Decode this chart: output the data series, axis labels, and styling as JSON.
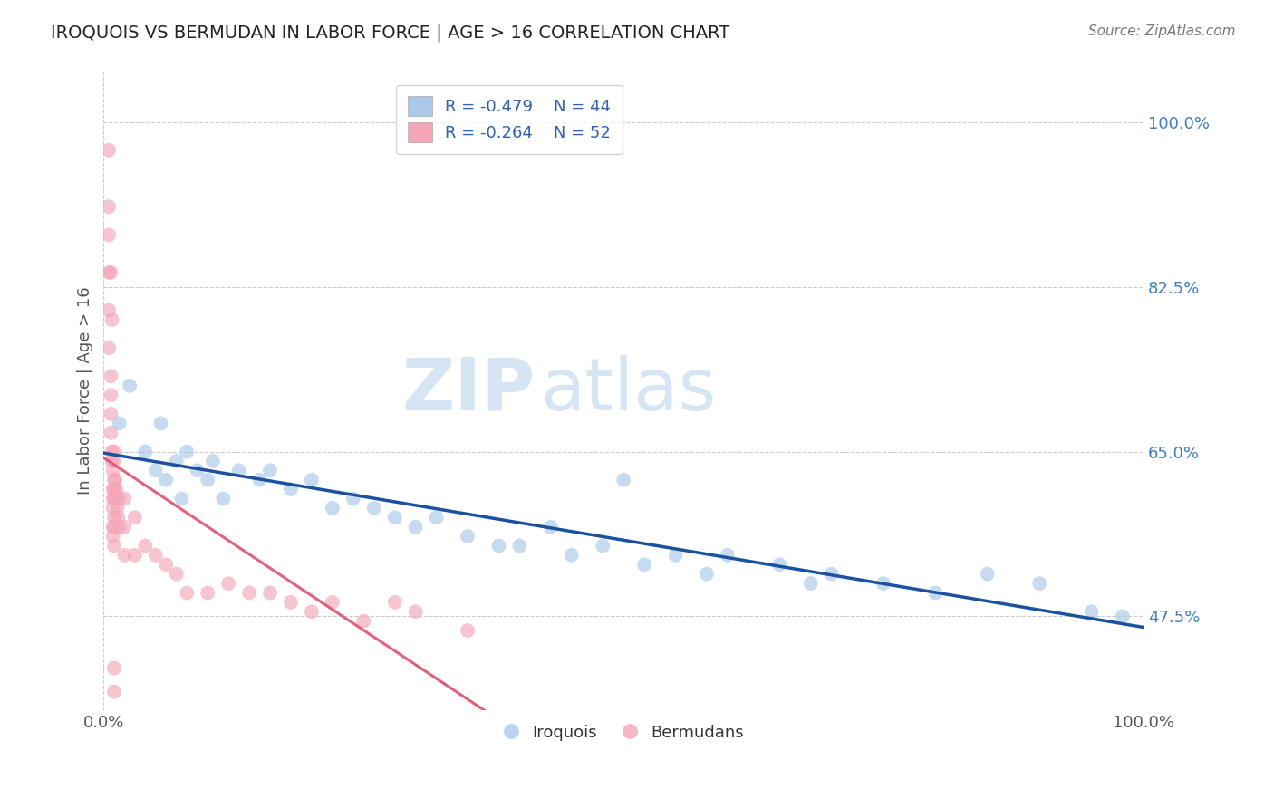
{
  "title": "IROQUOIS VS BERMUDAN IN LABOR FORCE | AGE > 16 CORRELATION CHART",
  "source_text": "Source: ZipAtlas.com",
  "ylabel": "In Labor Force | Age > 16",
  "yticklabels_right": [
    "47.5%",
    "65.0%",
    "82.5%",
    "100.0%"
  ],
  "legend_iroquois": "Iroquois",
  "legend_bermudans": "Bermudans",
  "legend_r_iroquois": "R = -0.479",
  "legend_n_iroquois": "N = 44",
  "legend_r_bermudans": "R = -0.264",
  "legend_n_bermudans": "N = 52",
  "iroquois_color": "#aac8e8",
  "iroquois_line_color": "#1a52a0",
  "bermudans_color": "#f4a6b8",
  "bermudans_line_color": "#e05070",
  "watermark_zip": "ZIP",
  "watermark_atlas": "atlas",
  "background_color": "#ffffff",
  "grid_color": "#cccccc",
  "xlim": [
    0.0,
    1.0
  ],
  "ylim": [
    0.375,
    1.055
  ],
  "yticks": [
    0.475,
    0.65,
    0.825,
    1.0
  ],
  "iroquois_x": [
    0.015,
    0.025,
    0.04,
    0.05,
    0.055,
    0.06,
    0.07,
    0.075,
    0.08,
    0.09,
    0.1,
    0.105,
    0.115,
    0.13,
    0.15,
    0.16,
    0.18,
    0.2,
    0.22,
    0.24,
    0.26,
    0.28,
    0.3,
    0.32,
    0.35,
    0.38,
    0.4,
    0.43,
    0.45,
    0.48,
    0.5,
    0.52,
    0.55,
    0.58,
    0.6,
    0.65,
    0.68,
    0.7,
    0.75,
    0.8,
    0.85,
    0.9,
    0.95,
    0.98
  ],
  "iroquois_y": [
    0.68,
    0.72,
    0.65,
    0.63,
    0.68,
    0.62,
    0.64,
    0.6,
    0.65,
    0.63,
    0.62,
    0.64,
    0.6,
    0.63,
    0.62,
    0.63,
    0.61,
    0.62,
    0.59,
    0.6,
    0.59,
    0.58,
    0.57,
    0.58,
    0.56,
    0.55,
    0.55,
    0.57,
    0.54,
    0.55,
    0.62,
    0.53,
    0.54,
    0.52,
    0.54,
    0.53,
    0.51,
    0.52,
    0.51,
    0.5,
    0.52,
    0.51,
    0.48,
    0.475
  ],
  "bermudans_x": [
    0.005,
    0.005,
    0.005,
    0.005,
    0.007,
    0.007,
    0.007,
    0.007,
    0.008,
    0.008,
    0.009,
    0.009,
    0.009,
    0.009,
    0.009,
    0.009,
    0.01,
    0.01,
    0.01,
    0.01,
    0.01,
    0.01,
    0.01,
    0.01,
    0.011,
    0.012,
    0.012,
    0.013,
    0.014,
    0.015,
    0.015,
    0.02,
    0.02,
    0.02,
    0.03,
    0.03,
    0.04,
    0.05,
    0.06,
    0.07,
    0.08,
    0.1,
    0.12,
    0.14,
    0.16,
    0.18,
    0.2,
    0.22,
    0.25,
    0.28,
    0.3,
    0.35
  ],
  "bermudans_y": [
    0.88,
    0.84,
    0.8,
    0.76,
    0.73,
    0.71,
    0.69,
    0.67,
    0.65,
    0.64,
    0.63,
    0.61,
    0.6,
    0.59,
    0.57,
    0.56,
    0.65,
    0.64,
    0.62,
    0.61,
    0.6,
    0.58,
    0.57,
    0.55,
    0.62,
    0.61,
    0.6,
    0.59,
    0.58,
    0.6,
    0.57,
    0.6,
    0.57,
    0.54,
    0.58,
    0.54,
    0.55,
    0.54,
    0.53,
    0.52,
    0.5,
    0.5,
    0.51,
    0.5,
    0.5,
    0.49,
    0.48,
    0.49,
    0.47,
    0.49,
    0.48,
    0.46
  ],
  "bermudans_isolated_x": [
    0.005,
    0.005,
    0.007,
    0.008,
    0.01,
    0.01
  ],
  "bermudans_isolated_y": [
    0.97,
    0.91,
    0.84,
    0.79,
    0.42,
    0.395
  ]
}
